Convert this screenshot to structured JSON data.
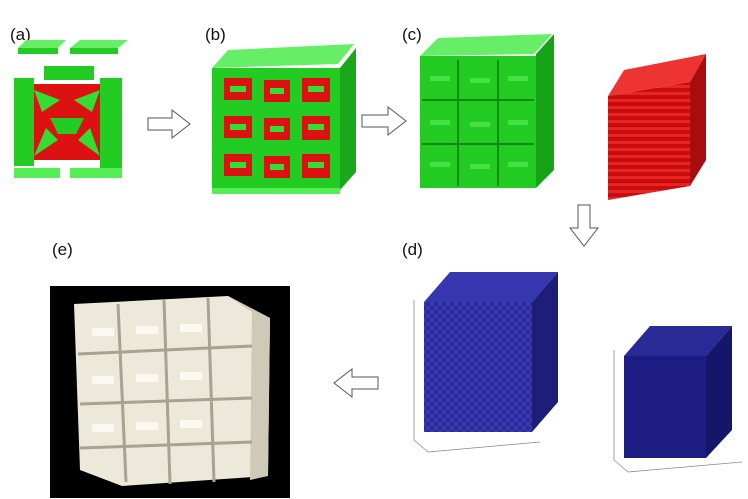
{
  "panels": {
    "a": {
      "label": "(a)"
    },
    "b": {
      "label": "(b)"
    },
    "c": {
      "label": "(c)"
    },
    "d": {
      "label": "(d)"
    },
    "e": {
      "label": "(e)"
    }
  },
  "colors": {
    "green": "#22cc22",
    "green_top": "#66ee66",
    "red": "#dd1111",
    "blue": "#22228a",
    "print_bg": "#000000",
    "print_white": "#ede9da"
  }
}
